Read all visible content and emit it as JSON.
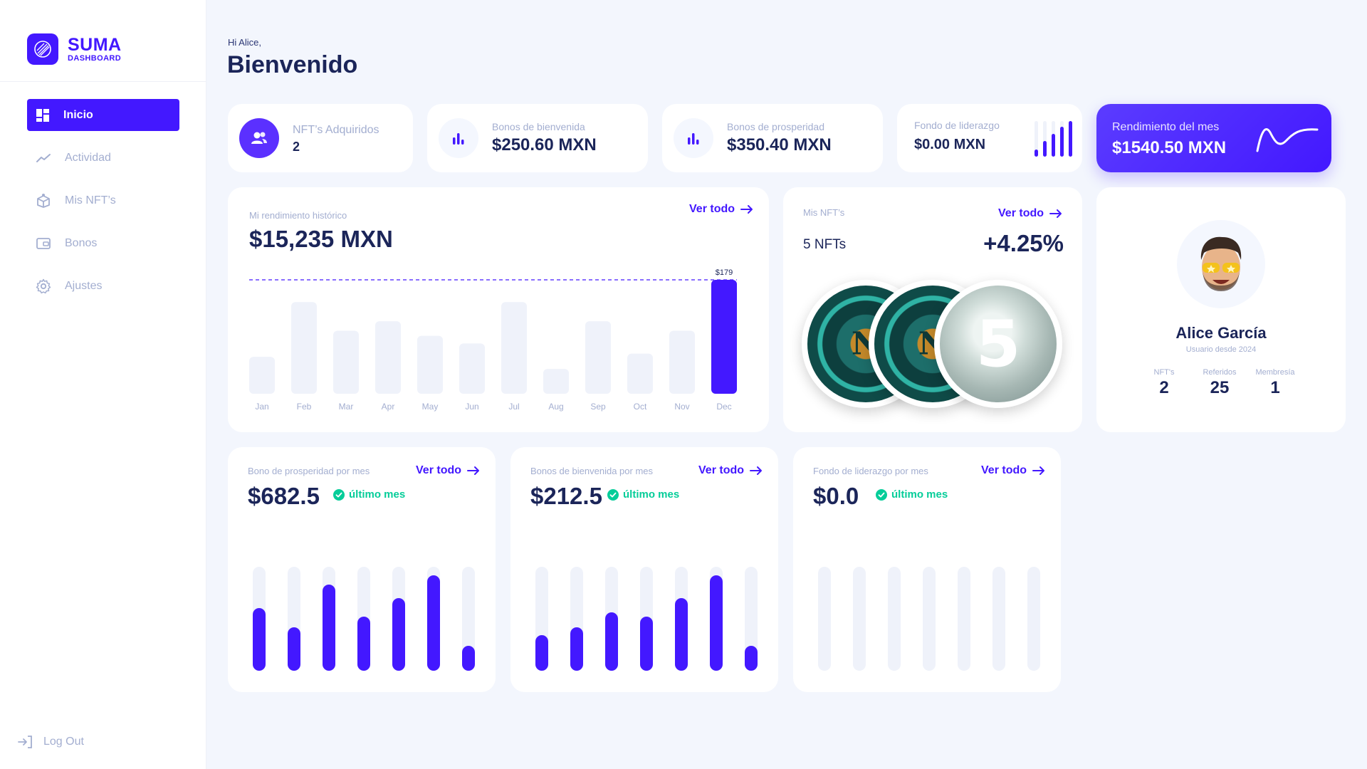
{
  "brand": {
    "name": "SUMA",
    "sub": "DASHBOARD",
    "color": "#4318ff"
  },
  "sidebar": {
    "items": [
      {
        "label": "Inicio",
        "icon": "dashboard-icon",
        "active": true
      },
      {
        "label": "Actividad",
        "icon": "trend-line-icon",
        "active": false
      },
      {
        "label": "Mis NFT’s",
        "icon": "nft-box-icon",
        "active": false
      },
      {
        "label": "Bonos",
        "icon": "wallet-icon",
        "active": false
      },
      {
        "label": "Ajustes",
        "icon": "gear-icon",
        "active": false
      }
    ],
    "logout": "Log Out"
  },
  "header": {
    "greeting": "Hi Alice,",
    "title": "Bienvenido"
  },
  "stats": {
    "nfts": {
      "label": "NFT’s Adquiridos",
      "value": "2"
    },
    "bienvenida": {
      "label": "Bonos de bienvenida",
      "value": "$250.60 MXN"
    },
    "prosperidad": {
      "label": "Bonos de prosperidad",
      "value": "$350.40 MXN"
    },
    "liderazgo": {
      "label": "Fondo de liderazgo",
      "value": "$0.00 MXN",
      "mini_bars": [
        0.2,
        0.45,
        0.65,
        0.85,
        1.0
      ]
    },
    "rendimiento": {
      "label": "Rendimiento del mes",
      "value": "$1540.50 MXN"
    }
  },
  "history": {
    "label": "Mi rendimiento histórico",
    "value": "$15,235 MXN",
    "ver_todo": "Ver todo",
    "peak_label": "$179"
  },
  "chart_data": {
    "type": "bar",
    "categories": [
      "Jan",
      "Feb",
      "Mar",
      "Apr",
      "May",
      "Jun",
      "Jul",
      "Aug",
      "Sep",
      "Oct",
      "Nov",
      "Dec"
    ],
    "values": [
      58,
      144,
      99,
      114,
      91,
      79,
      144,
      39,
      114,
      63,
      99,
      179
    ],
    "highlight_index": 11,
    "reference_line": 179,
    "ylim": [
      0,
      179
    ],
    "grid": false
  },
  "mis_nfts": {
    "label": "Mis NFT’s",
    "ver_todo": "Ver todo",
    "count": "5 NFTs",
    "change": "+4.25%",
    "coins": [
      {
        "kind": "n-coin",
        "letter": "N"
      },
      {
        "kind": "n-coin",
        "letter": "N"
      },
      {
        "kind": "number-coin",
        "letter": "5"
      }
    ]
  },
  "profile": {
    "name": "Alice García",
    "since": "Usuario desde 2024",
    "stats": [
      {
        "label": "NFT's",
        "value": "2"
      },
      {
        "label": "Referidos",
        "value": "25"
      },
      {
        "label": "Membresía",
        "value": "1"
      }
    ]
  },
  "monthly": [
    {
      "label": "Bono de prosperidad por mes",
      "value": "$682.5",
      "badge": "último mes",
      "ver_todo": "Ver todo",
      "levels": [
        0.6,
        0.42,
        0.83,
        0.52,
        0.7,
        0.92,
        0.24
      ]
    },
    {
      "label": "Bonos de bienvenida por mes",
      "value": "$212.5",
      "badge": "último mes",
      "ver_todo": "Ver todo",
      "levels": [
        0.34,
        0.42,
        0.56,
        0.52,
        0.7,
        0.92,
        0.24
      ]
    },
    {
      "label": "Fondo de liderazgo por mes",
      "value": "$0.0",
      "badge": "último mes",
      "ver_todo": "Ver todo",
      "levels": [
        0,
        0,
        0,
        0,
        0,
        0,
        0
      ]
    }
  ],
  "colors": {
    "accent": "#4318ff",
    "success": "#05cd99",
    "muted": "#a3aed0",
    "bar_bg": "#eff2fa"
  }
}
